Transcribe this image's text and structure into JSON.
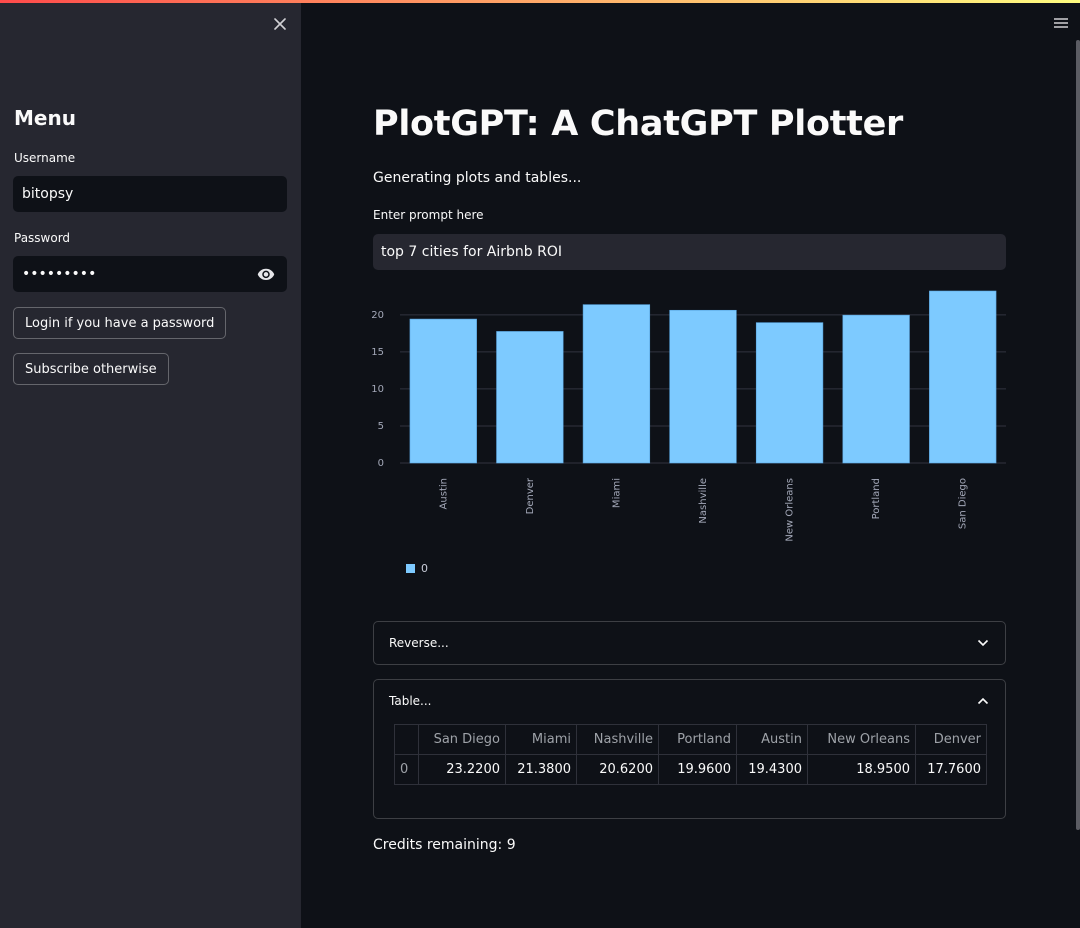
{
  "sidebar": {
    "menu_title": "Menu",
    "username_label": "Username",
    "username_value": "bitopsy",
    "password_label": "Password",
    "password_value": "•••••••••",
    "login_button": "Login if you have a password",
    "subscribe_button": "Subscribe otherwise"
  },
  "main": {
    "title": "PlotGPT: A ChatGPT Plotter",
    "subtitle": "Generating plots and tables...",
    "prompt_label": "Enter prompt here",
    "prompt_value": "top 7 cities for Airbnb ROI",
    "credits": "Credits remaining: 9"
  },
  "expanders": {
    "reverse_label": "Reverse...",
    "table_label": "Table..."
  },
  "table": {
    "index_header": "",
    "columns": [
      "San Diego",
      "Miami",
      "Nashville",
      "Portland",
      "Austin",
      "New Orleans",
      "Denver"
    ],
    "rows": [
      {
        "index": "0",
        "values": [
          "23.2200",
          "21.3800",
          "20.6200",
          "19.9600",
          "19.4300",
          "18.9500",
          "17.7600"
        ]
      }
    ]
  },
  "colors": {
    "bar": "#7dcaff",
    "background": "#0e1117",
    "sidebar": "#262730"
  },
  "chart_data": {
    "type": "bar",
    "categories": [
      "Austin",
      "Denver",
      "Miami",
      "Nashville",
      "New Orleans",
      "Portland",
      "San Diego"
    ],
    "series": [
      {
        "name": "0",
        "values": [
          19.43,
          17.76,
          21.38,
          20.62,
          18.95,
          19.96,
          23.22
        ]
      }
    ],
    "yticks": [
      0,
      5,
      10,
      15,
      20
    ],
    "ylim": [
      0,
      23.22
    ],
    "grid": true,
    "legend": "bottom-left"
  }
}
